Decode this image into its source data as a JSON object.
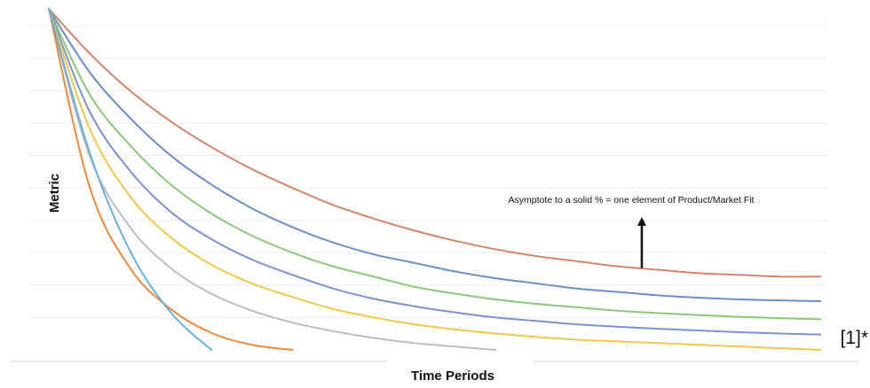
{
  "chart_data": {
    "type": "line",
    "title": "",
    "xlabel": "Time Periods",
    "ylabel": "Metric",
    "annotation": "Asymptote to a solid % = one element of Product/Market Fit",
    "footnote": "[1]*",
    "grid": true,
    "x_ticks_labeled": false,
    "y_ticks_labeled": false,
    "xlim": [
      0,
      10
    ],
    "ylim": [
      0,
      100
    ],
    "gridline_values": [
      9.5,
      19,
      28.5,
      38,
      47.5,
      57,
      66.5,
      76,
      85.5,
      95
    ],
    "annotation_arrow": {
      "x": 7.3,
      "from_y": 24,
      "to_y": 39
    },
    "series": [
      {
        "color": "#d3866a",
        "x": [
          0,
          0.5,
          1,
          1.5,
          2,
          2.5,
          3,
          3.5,
          4,
          4.5,
          5,
          5.5,
          6,
          6.5,
          7,
          7.5,
          8,
          8.5,
          9,
          9.5
        ],
        "values": [
          100,
          87,
          76,
          67,
          59.5,
          53,
          47.5,
          42.5,
          38.5,
          35,
          32,
          29.5,
          27.5,
          26,
          24.5,
          23.5,
          22.5,
          22,
          21.5,
          21.5
        ]
      },
      {
        "color": "#6b8fc6",
        "x": [
          0,
          0.5,
          1,
          1.5,
          2,
          2.5,
          3,
          3.5,
          4,
          4.5,
          5,
          5.5,
          6,
          6.5,
          7,
          7.5,
          8,
          8.5,
          9,
          9.5
        ],
        "values": [
          100,
          81.5,
          68,
          57,
          48.5,
          41.5,
          36,
          31.5,
          28,
          25.5,
          23,
          21,
          19.5,
          18,
          17,
          16,
          15.3,
          14.8,
          14.5,
          14.3
        ]
      },
      {
        "color": "#8cc77a",
        "x": [
          0,
          0.5,
          1,
          1.5,
          2,
          2.5,
          3,
          3.5,
          4,
          4.5,
          5,
          5.5,
          6,
          6.5,
          7,
          7.5,
          8,
          8.5,
          9,
          9.5
        ],
        "values": [
          100,
          75,
          60,
          48.5,
          40,
          33.5,
          28.5,
          24.5,
          21.5,
          18.5,
          16.5,
          14.8,
          13.5,
          12.5,
          11.5,
          10.8,
          10.2,
          9.7,
          9.3,
          9
        ]
      },
      {
        "color": "#7c91d4",
        "x": [
          0,
          0.5,
          1,
          1.5,
          2,
          2.5,
          3,
          3.5,
          4,
          4.5,
          5,
          5.5,
          6,
          6.5,
          7,
          7.5,
          8,
          8.5,
          9,
          9.5
        ],
        "values": [
          100,
          70,
          52.5,
          40.5,
          32.5,
          26.5,
          22,
          18,
          15,
          12.8,
          11,
          9.5,
          8.5,
          7.5,
          6.8,
          6.2,
          5.7,
          5.2,
          4.8,
          4.5
        ]
      },
      {
        "color": "#f2c84b",
        "x": [
          0,
          0.5,
          1,
          1.5,
          2,
          2.5,
          3,
          3.5,
          4,
          4.5,
          5,
          5.5,
          6,
          6.5,
          7,
          7.5,
          8,
          8.5,
          9,
          9.5
        ],
        "values": [
          100,
          65,
          45,
          33,
          25,
          19.5,
          15.5,
          12,
          9.5,
          7.5,
          6,
          4.8,
          3.8,
          3,
          2.5,
          2,
          1.5,
          1,
          0.5,
          0
        ]
      },
      {
        "color": "#bdbdbd",
        "x": [
          0,
          0.5,
          1,
          1.5,
          2,
          2.5,
          3,
          3.5,
          4,
          4.5,
          5,
          5.5
        ],
        "values": [
          100,
          57,
          36,
          24,
          16.5,
          11.5,
          8,
          5.5,
          3.5,
          2,
          1,
          0
        ]
      },
      {
        "color": "#ef8a3c",
        "x": [
          0,
          0.5,
          1,
          1.5,
          2,
          2.5,
          3
        ],
        "values": [
          100,
          48,
          24,
          12,
          5,
          1.5,
          0
        ]
      },
      {
        "color": "#6ab0dc",
        "x": [
          0,
          0.5,
          1,
          1.5,
          2
        ],
        "values": [
          100,
          58,
          29,
          11,
          0
        ]
      }
    ]
  }
}
